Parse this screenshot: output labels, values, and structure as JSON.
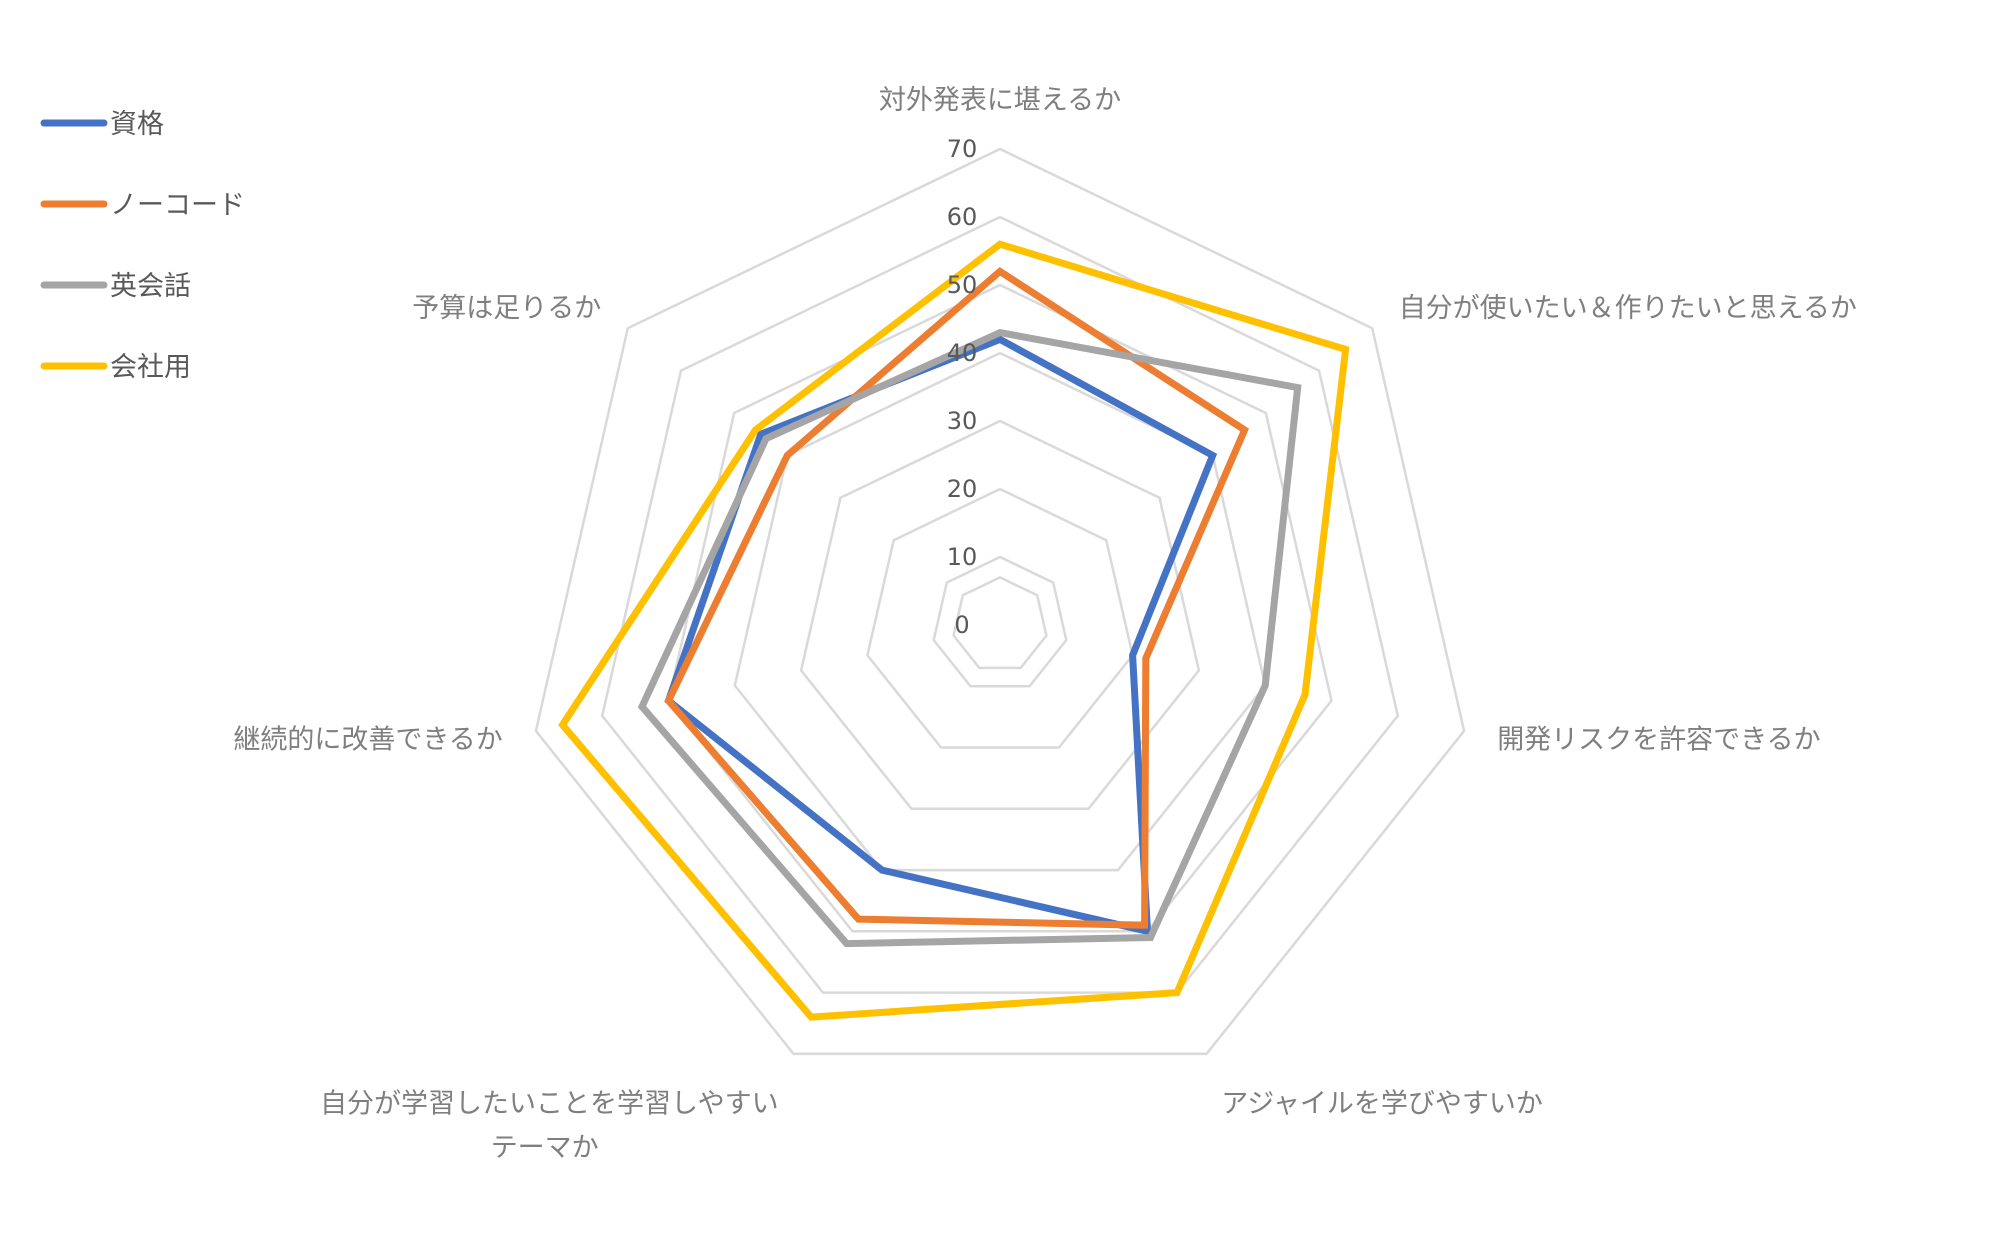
{
  "chart_data": {
    "type": "radar",
    "categories": [
      "対外発表に堪えるか",
      "自分が使いたい＆作りたいと思えるか",
      "開発リスクを許容できるか",
      "アジャイルを学びやすいか",
      "自分が学習したいことを学習しやすい\nテーマか",
      "継続的に改善できるか",
      "予算は足りるか"
    ],
    "series": [
      {
        "name": "資格",
        "color": "#4472C4",
        "values": [
          42,
          40,
          20,
          50,
          40,
          50,
          45
        ]
      },
      {
        "name": "ノーコード",
        "color": "#ED7D31",
        "values": [
          52,
          46,
          22,
          49,
          48,
          50,
          40
        ]
      },
      {
        "name": "英会話",
        "color": "#A5A5A5",
        "values": [
          43,
          56,
          40,
          51,
          52,
          54,
          44
        ]
      },
      {
        "name": "会社用",
        "color": "#FFC000",
        "values": [
          56,
          65,
          46,
          60,
          64,
          66,
          46
        ]
      }
    ],
    "rlim": [
      0,
      70
    ],
    "ticks": [
      0,
      10,
      20,
      30,
      40,
      50,
      60,
      70
    ],
    "grid": true,
    "legend": "left",
    "title": ""
  }
}
